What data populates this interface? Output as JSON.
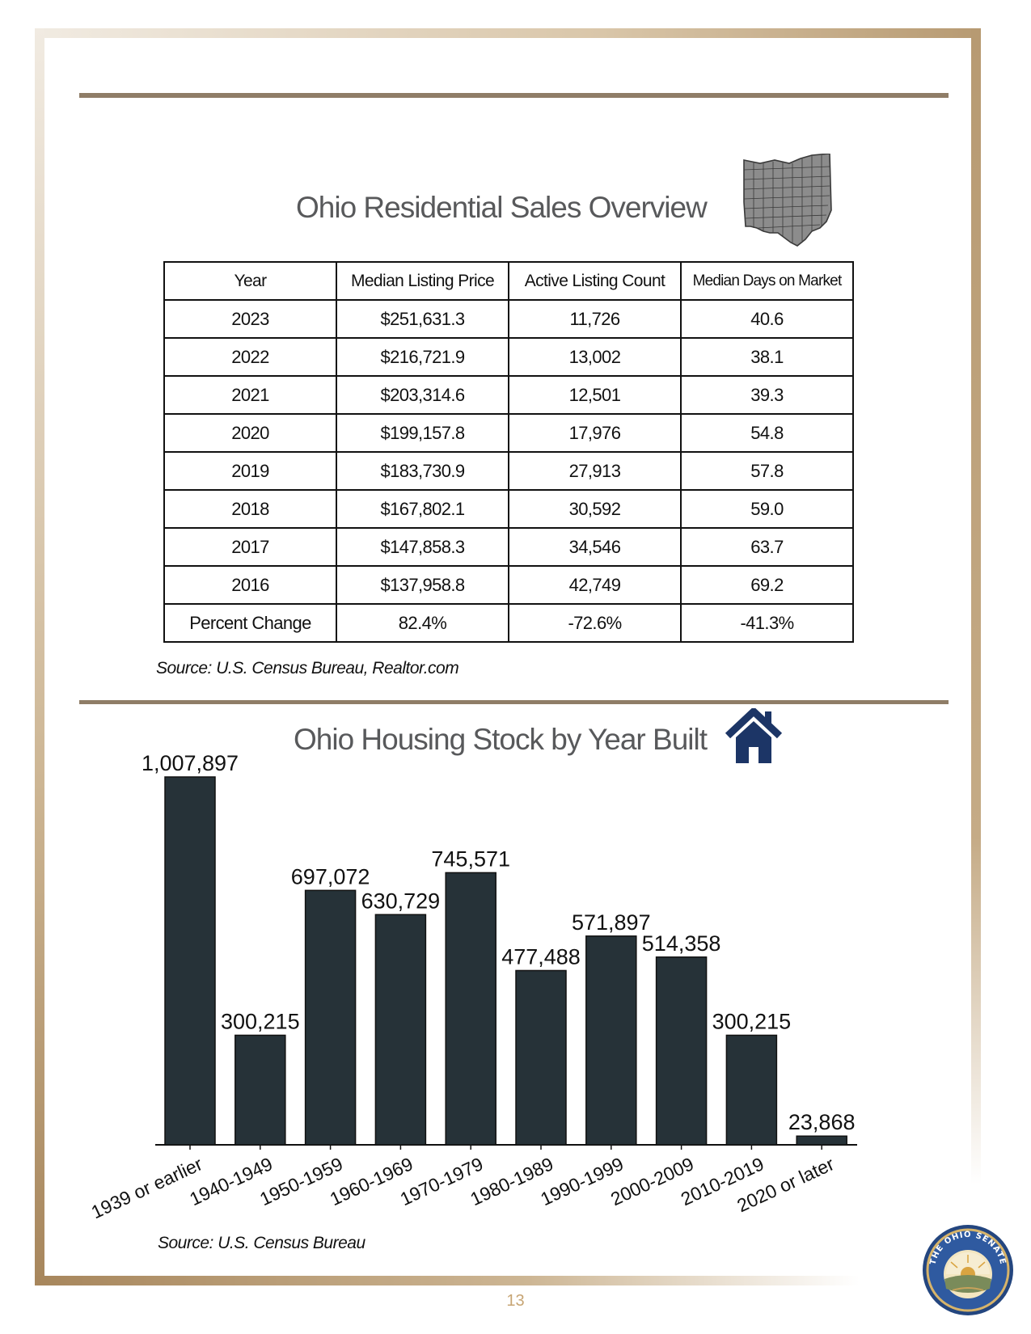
{
  "page": {
    "number": "13",
    "accent_color": "#8f7d67",
    "frame_color": "#b79a72"
  },
  "sales_overview": {
    "title": "Ohio Residential Sales Overview",
    "icon": "ohio-map-icon",
    "columns": [
      "Year",
      "Median Listing Price",
      "Active Listing Count",
      "Median Days on Market"
    ],
    "rows": [
      [
        "2023",
        "$251,631.3",
        "11,726",
        "40.6"
      ],
      [
        "2022",
        "$216,721.9",
        "13,002",
        "38.1"
      ],
      [
        "2021",
        "$203,314.6",
        "12,501",
        "39.3"
      ],
      [
        "2020",
        "$199,157.8",
        "17,976",
        "54.8"
      ],
      [
        "2019",
        "$183,730.9",
        "27,913",
        "57.8"
      ],
      [
        "2018",
        "$167,802.1",
        "30,592",
        "59.0"
      ],
      [
        "2017",
        "$147,858.3",
        "34,546",
        "63.7"
      ],
      [
        "2016",
        "$137,958.8",
        "42,749",
        "69.2"
      ],
      [
        "Percent Change",
        "82.4%",
        "-72.6%",
        "-41.3%"
      ]
    ],
    "source": "Source: U.S. Census Bureau, Realtor.com"
  },
  "housing_stock": {
    "title": "Ohio Housing Stock by Year Built",
    "icon": "house-icon",
    "icon_color": "#1c3566",
    "source": "Source: U.S. Census Bureau"
  },
  "chart_data": {
    "type": "bar",
    "title": "Ohio Housing Stock by Year Built",
    "categories": [
      "1939 or earlier",
      "1940-1949",
      "1950-1959",
      "1960-1969",
      "1970-1979",
      "1980-1989",
      "1990-1999",
      "2000-2009",
      "2010-2019",
      "2020 or later"
    ],
    "values": [
      1007897,
      300215,
      697072,
      630729,
      745571,
      477488,
      571897,
      514358,
      300215,
      23868
    ],
    "data_labels": [
      "1,007,897",
      "300,215",
      "697,072",
      "630,729",
      "745,571",
      "477,488",
      "571,897",
      "514,358",
      "300,215",
      "23,868"
    ],
    "xlabel": "",
    "ylabel": "",
    "ylim": [
      0,
      1007897
    ],
    "bar_color": "#263238",
    "grid": false,
    "legend": "none"
  },
  "seal": {
    "text": "THE OHIO SENATE"
  }
}
